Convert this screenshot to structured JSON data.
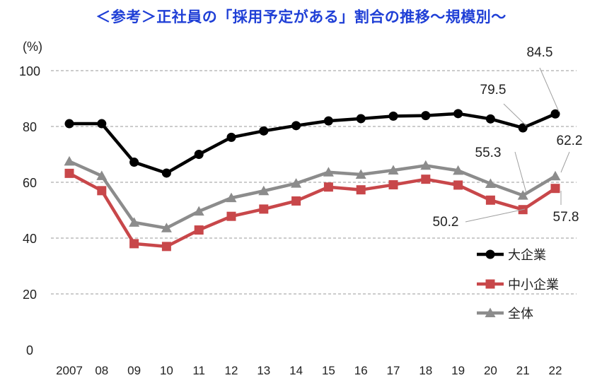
{
  "chart_data": {
    "type": "line",
    "title": "＜参考＞正社員の「採用予定がある」割合の推移～規模別～",
    "unit_label": "(%)",
    "xlabel": "",
    "ylabel": "",
    "ylim": [
      0,
      100
    ],
    "yticks": [
      "0",
      "20",
      "40",
      "60",
      "80",
      "100"
    ],
    "grid": true,
    "legend_position": "right",
    "categories": [
      "2007",
      "08",
      "09",
      "10",
      "11",
      "12",
      "13",
      "14",
      "15",
      "16",
      "17",
      "18",
      "19",
      "20",
      "21",
      "22"
    ],
    "series": [
      {
        "name": "大企業",
        "marker": "circle",
        "color": "#000000",
        "values": [
          81.0,
          81.0,
          67.2,
          63.3,
          70.0,
          76.1,
          78.4,
          80.3,
          82.0,
          82.8,
          83.7,
          83.9,
          84.6,
          82.7,
          79.5,
          84.5
        ]
      },
      {
        "name": "中小企業",
        "marker": "square",
        "color": "#c8474a",
        "values": [
          63.2,
          57.0,
          38.0,
          37.0,
          42.9,
          47.8,
          50.4,
          53.3,
          58.3,
          57.3,
          59.1,
          61.1,
          59.0,
          53.6,
          50.2,
          57.8
        ]
      },
      {
        "name": "全体",
        "marker": "triangle",
        "color": "#8c8c8c",
        "values": [
          67.5,
          62.3,
          45.6,
          43.6,
          49.6,
          54.4,
          56.9,
          59.6,
          63.6,
          62.8,
          64.3,
          66.0,
          64.2,
          59.5,
          55.3,
          62.2
        ]
      }
    ],
    "annotations": [
      "84.5",
      "79.5",
      "62.2",
      "55.3",
      "57.8",
      "50.2"
    ]
  }
}
